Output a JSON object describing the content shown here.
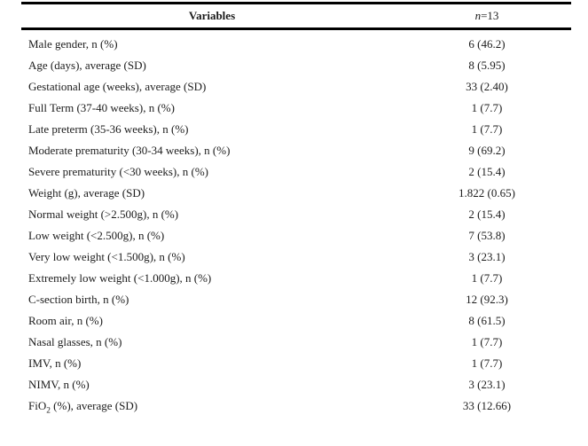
{
  "table": {
    "header": {
      "variables_label": "Variables",
      "n_italic": "n",
      "n_rest": "=13"
    },
    "rows": [
      {
        "label": "Male gender, n (%)",
        "value": "6 (46.2)"
      },
      {
        "label": "Age (days), average (SD)",
        "value": "8 (5.95)"
      },
      {
        "label": "Gestational age (weeks), average (SD)",
        "value": "33 (2.40)"
      },
      {
        "label": "Full Term (37-40 weeks), n (%)",
        "value": "1 (7.7)"
      },
      {
        "label": "Late preterm (35-36 weeks), n (%)",
        "value": "1 (7.7)"
      },
      {
        "label": "Moderate prematurity (30-34 weeks), n (%)",
        "value": "9 (69.2)"
      },
      {
        "label": "Severe prematurity (<30 weeks), n (%)",
        "value": "2 (15.4)"
      },
      {
        "label": "Weight (g), average (SD)",
        "value": "1.822 (0.65)"
      },
      {
        "label": "Normal weight (>2.500g), n (%)",
        "value": "2 (15.4)"
      },
      {
        "label": "Low weight (<2.500g), n (%)",
        "value": "7 (53.8)"
      },
      {
        "label": "Very low weight (<1.500g), n (%)",
        "value": "3 (23.1)"
      },
      {
        "label": "Extremely low weight (<1.000g), n (%)",
        "value": "1 (7.7)"
      },
      {
        "label": "C-section birth, n (%)",
        "value": "12 (92.3)"
      },
      {
        "label": "Room air, n (%)",
        "value": "8 (61.5)"
      },
      {
        "label": "Nasal glasses, n (%)",
        "value": "1 (7.7)"
      },
      {
        "label": "IMV, n (%)",
        "value": "1 (7.7)"
      },
      {
        "label": "NIMV, n (%)",
        "value": "3 (23.1)"
      },
      {
        "label": "FiO2 (%), average (SD)",
        "label_parts": [
          "FiO",
          "2",
          " (%), average (SD)"
        ],
        "value": "33 (12.66)"
      }
    ]
  },
  "colors": {
    "background": "#ffffff",
    "text": "#1c1c1c",
    "rule": "#000000"
  }
}
